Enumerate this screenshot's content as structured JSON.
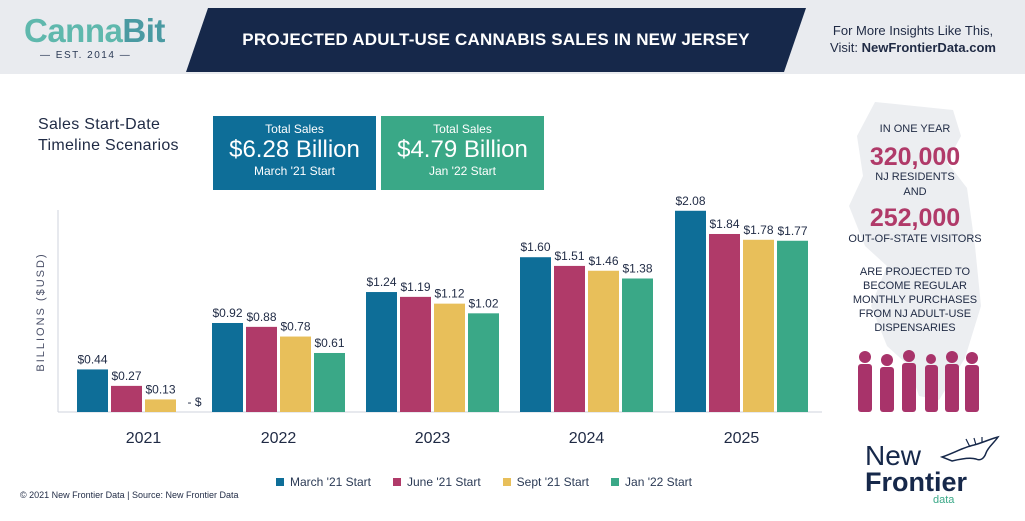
{
  "header": {
    "logo_name_part1": "Canna",
    "logo_name_part2": "Bit",
    "logo_est": "— EST. 2014 —",
    "title": "PROJECTED ADULT-USE CANNABIS SALES IN NEW JERSEY",
    "right_line1": "For More Insights Like This,",
    "right_prefix": "Visit: ",
    "right_link": "NewFrontierData.com"
  },
  "scenarios": {
    "title_line1": "Sales Start-Date",
    "title_line2": "Timeline Scenarios",
    "box1": {
      "label": "Total Sales",
      "value": "$6.28 Billion",
      "sub": "March '21 Start"
    },
    "box2": {
      "label": "Total Sales",
      "value": "$4.79 Billion",
      "sub": "Jan '22 Start"
    }
  },
  "colors": {
    "navy": "#16284a",
    "march": "#0e6e98",
    "june": "#b03a69",
    "sept": "#e8bf5a",
    "jan": "#3aa887",
    "magenta": "#b03a69",
    "silhouette": "#a8336a"
  },
  "chart_data": {
    "type": "bar",
    "ylabel": "BILLIONS ($USD)",
    "ylim": [
      0,
      2.15
    ],
    "grid": false,
    "legend_position": "bottom",
    "categories": [
      "2021",
      "2022",
      "2023",
      "2024",
      "2025"
    ],
    "series": [
      {
        "name": "March '21 Start",
        "values": [
          0.44,
          0.92,
          1.24,
          1.6,
          2.08
        ],
        "labels": [
          "$0.44",
          "$0.92",
          "$1.24",
          "$1.60",
          "$2.08"
        ]
      },
      {
        "name": "June '21 Start",
        "values": [
          0.27,
          0.88,
          1.19,
          1.51,
          1.84
        ],
        "labels": [
          "$0.27",
          "$0.88",
          "$1.19",
          "$1.51",
          "$1.84"
        ]
      },
      {
        "name": "Sept '21 Start",
        "values": [
          0.13,
          0.78,
          1.12,
          1.46,
          1.78
        ],
        "labels": [
          "$0.13",
          "$0.78",
          "$1.12",
          "$1.46",
          "$1.78"
        ]
      },
      {
        "name": "Jan '22 Start",
        "values": [
          0,
          0.61,
          1.02,
          1.38,
          1.77
        ],
        "labels": [
          "- $",
          "$0.61",
          "$1.02",
          "$1.38",
          "$1.77"
        ]
      }
    ]
  },
  "right_panel": {
    "in_one_year": "IN ONE YEAR",
    "residents_value": "320,000",
    "residents_label": "NJ RESIDENTS",
    "and": "AND",
    "visitors_value": "252,000",
    "visitors_label": "OUT-OF-STATE VISITORS",
    "proj_line1": "ARE PROJECTED TO",
    "proj_line2": "BECOME REGULAR",
    "proj_line3": "MONTHLY PURCHASES",
    "proj_line4": "FROM NJ ADULT-USE",
    "proj_line5": "DISPENSARIES",
    "icons": [
      "nj-state-map-icon",
      "people-silhouettes-icon",
      "horse-logo-icon"
    ]
  },
  "footer": {
    "copyright": "© 2021  New Frontier Data | Source: New Frontier Data"
  },
  "brand_logo": {
    "word1": "New",
    "word2": "Frontier",
    "word3": "data"
  }
}
